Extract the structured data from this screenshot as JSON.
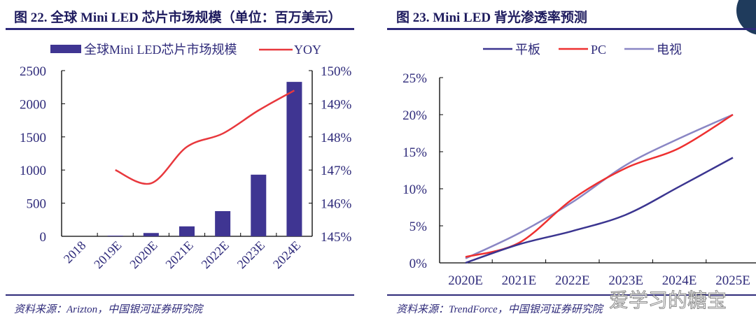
{
  "watermark": "爱学习的糖宝",
  "colors": {
    "bar": "#3f3592",
    "yoy": "#e8383d",
    "tablet": "#3b3590",
    "pc": "#ee3030",
    "tv": "#8a86c4",
    "text": "#2e2a7a"
  },
  "chart_data": [
    {
      "type": "bar+line",
      "title": "图 22. 全球 Mini LED 芯片市场规模（单位：百万美元）",
      "source": "资料来源：Arizton，中国银河证券研究院",
      "categories": [
        "2018",
        "2019E",
        "2020E",
        "2021E",
        "2022E",
        "2023E",
        "2024E"
      ],
      "series": [
        {
          "name": "全球Mini LED芯片市场规模",
          "type": "bar",
          "axis": "left",
          "values": [
            0,
            10,
            50,
            150,
            380,
            930,
            2330
          ]
        },
        {
          "name": "YOY",
          "type": "line",
          "axis": "right",
          "values": [
            null,
            147.0,
            146.6,
            147.7,
            148.1,
            148.8,
            149.4
          ]
        }
      ],
      "ylim_left": [
        0,
        2500
      ],
      "yticks_left": [
        "0",
        "500",
        "1000",
        "1500",
        "2000",
        "2500"
      ],
      "ylim_right": [
        145,
        150
      ],
      "yticks_right": [
        "145%",
        "146%",
        "147%",
        "148%",
        "149%",
        "150%"
      ],
      "legend": "top"
    },
    {
      "type": "line",
      "title": "图 23. Mini LED 背光渗透率预测",
      "source": "资料来源：TrendForce，中国银河证券研究院",
      "categories": [
        "2020E",
        "2021E",
        "2022E",
        "2023E",
        "2024E",
        "2025E"
      ],
      "series": [
        {
          "name": "平板",
          "values": [
            0,
            2.5,
            4.3,
            6.5,
            10.3,
            14.2
          ]
        },
        {
          "name": "PC",
          "values": [
            0.8,
            2.7,
            8.6,
            12.8,
            15.5,
            20
          ]
        },
        {
          "name": "电视",
          "values": [
            0.6,
            4.0,
            8.2,
            13.2,
            16.8,
            20
          ]
        }
      ],
      "ylim": [
        0,
        25
      ],
      "yticks": [
        "0%",
        "5%",
        "10%",
        "15%",
        "20%",
        "25%"
      ],
      "legend": "top"
    }
  ]
}
